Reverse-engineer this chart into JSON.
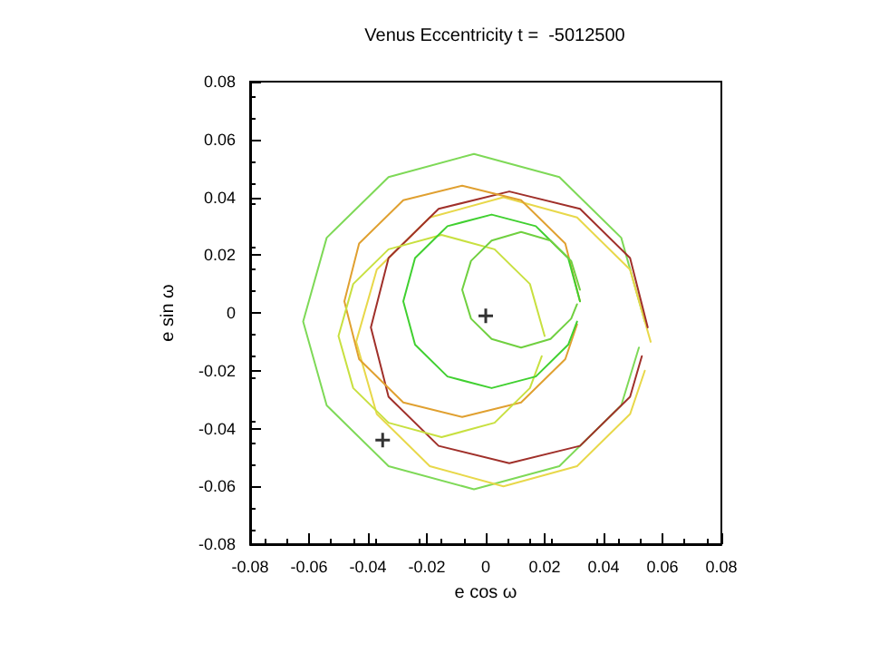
{
  "chart_data": {
    "type": "line",
    "title": "Venus Eccentricity t =  -5012500",
    "xlabel": "e cos ω",
    "ylabel": "e sin ω",
    "xlim": [
      -0.08,
      0.08
    ],
    "ylim": [
      -0.08,
      0.08
    ],
    "xticks": [
      -0.08,
      -0.06,
      -0.04,
      -0.02,
      0,
      0.02,
      0.04,
      0.06,
      0.08
    ],
    "yticks": [
      -0.08,
      -0.06,
      -0.04,
      -0.02,
      0,
      0.02,
      0.04,
      0.06,
      0.08
    ],
    "grid": false,
    "marker": "none",
    "line_style": "solid",
    "series": [
      {
        "color": "#7ed957",
        "x": [
          0.054,
          0.046,
          0.025,
          -0.004,
          -0.033,
          -0.054,
          -0.062,
          -0.054,
          -0.033,
          -0.004,
          0.025,
          0.046,
          0.052
        ],
        "values": [
          -0.003,
          0.026,
          0.047,
          0.055,
          0.047,
          0.026,
          -0.003,
          -0.032,
          -0.053,
          -0.061,
          -0.053,
          -0.032,
          -0.012
        ]
      },
      {
        "color": "#e8d84a",
        "x": [
          0.056,
          0.049,
          0.031,
          0.006,
          -0.019,
          -0.037,
          -0.044,
          -0.037,
          -0.019,
          0.006,
          0.031,
          0.049,
          0.054
        ],
        "values": [
          -0.01,
          0.015,
          0.033,
          0.04,
          0.033,
          0.015,
          -0.01,
          -0.035,
          -0.053,
          -0.06,
          -0.053,
          -0.035,
          -0.02
        ]
      },
      {
        "color": "#a0302a",
        "x": [
          0.055,
          0.049,
          0.032,
          0.008,
          -0.016,
          -0.033,
          -0.039,
          -0.033,
          -0.016,
          0.008,
          0.032,
          0.049,
          0.053
        ],
        "values": [
          -0.005,
          0.019,
          0.036,
          0.042,
          0.036,
          0.019,
          -0.005,
          -0.029,
          -0.046,
          -0.052,
          -0.046,
          -0.029,
          -0.015
        ]
      },
      {
        "color": "#e0a030",
        "x": [
          0.032,
          0.027,
          0.012,
          -0.008,
          -0.028,
          -0.043,
          -0.048,
          -0.043,
          -0.028,
          -0.008,
          0.012,
          0.027,
          0.031
        ],
        "values": [
          0.004,
          0.024,
          0.039,
          0.044,
          0.039,
          0.024,
          0.004,
          -0.016,
          -0.031,
          -0.036,
          -0.031,
          -0.016,
          -0.004
        ]
      },
      {
        "color": "#c8e040",
        "x": [
          0.02,
          0.015,
          0.003,
          -0.015,
          -0.033,
          -0.045,
          -0.05,
          -0.045,
          -0.033,
          -0.015,
          0.003,
          0.015,
          0.019
        ],
        "values": [
          -0.008,
          0.01,
          0.022,
          0.027,
          0.022,
          0.01,
          -0.008,
          -0.026,
          -0.038,
          -0.043,
          -0.038,
          -0.026,
          -0.015
        ]
      },
      {
        "color": "#40d030",
        "x": [
          0.032,
          0.028,
          0.017,
          0.002,
          -0.013,
          -0.024,
          -0.028,
          -0.024,
          -0.013,
          0.002,
          0.017,
          0.028,
          0.031
        ],
        "values": [
          0.004,
          0.019,
          0.03,
          0.034,
          0.03,
          0.019,
          0.004,
          -0.011,
          -0.022,
          -0.026,
          -0.022,
          -0.011,
          -0.003
        ]
      },
      {
        "color": "#70d040",
        "x": [
          0.032,
          0.029,
          0.022,
          0.012,
          0.002,
          -0.005,
          -0.008,
          -0.005,
          0.002,
          0.012,
          0.022,
          0.029,
          0.031
        ],
        "values": [
          0.008,
          0.018,
          0.025,
          0.028,
          0.025,
          0.018,
          0.008,
          -0.002,
          -0.009,
          -0.012,
          -0.009,
          -0.002,
          0.003
        ]
      },
      {
        "type": "scatter",
        "marker": "cross",
        "color": "#000000",
        "x": [
          0,
          -0.035
        ],
        "values": [
          -0.001,
          -0.044
        ]
      }
    ]
  }
}
